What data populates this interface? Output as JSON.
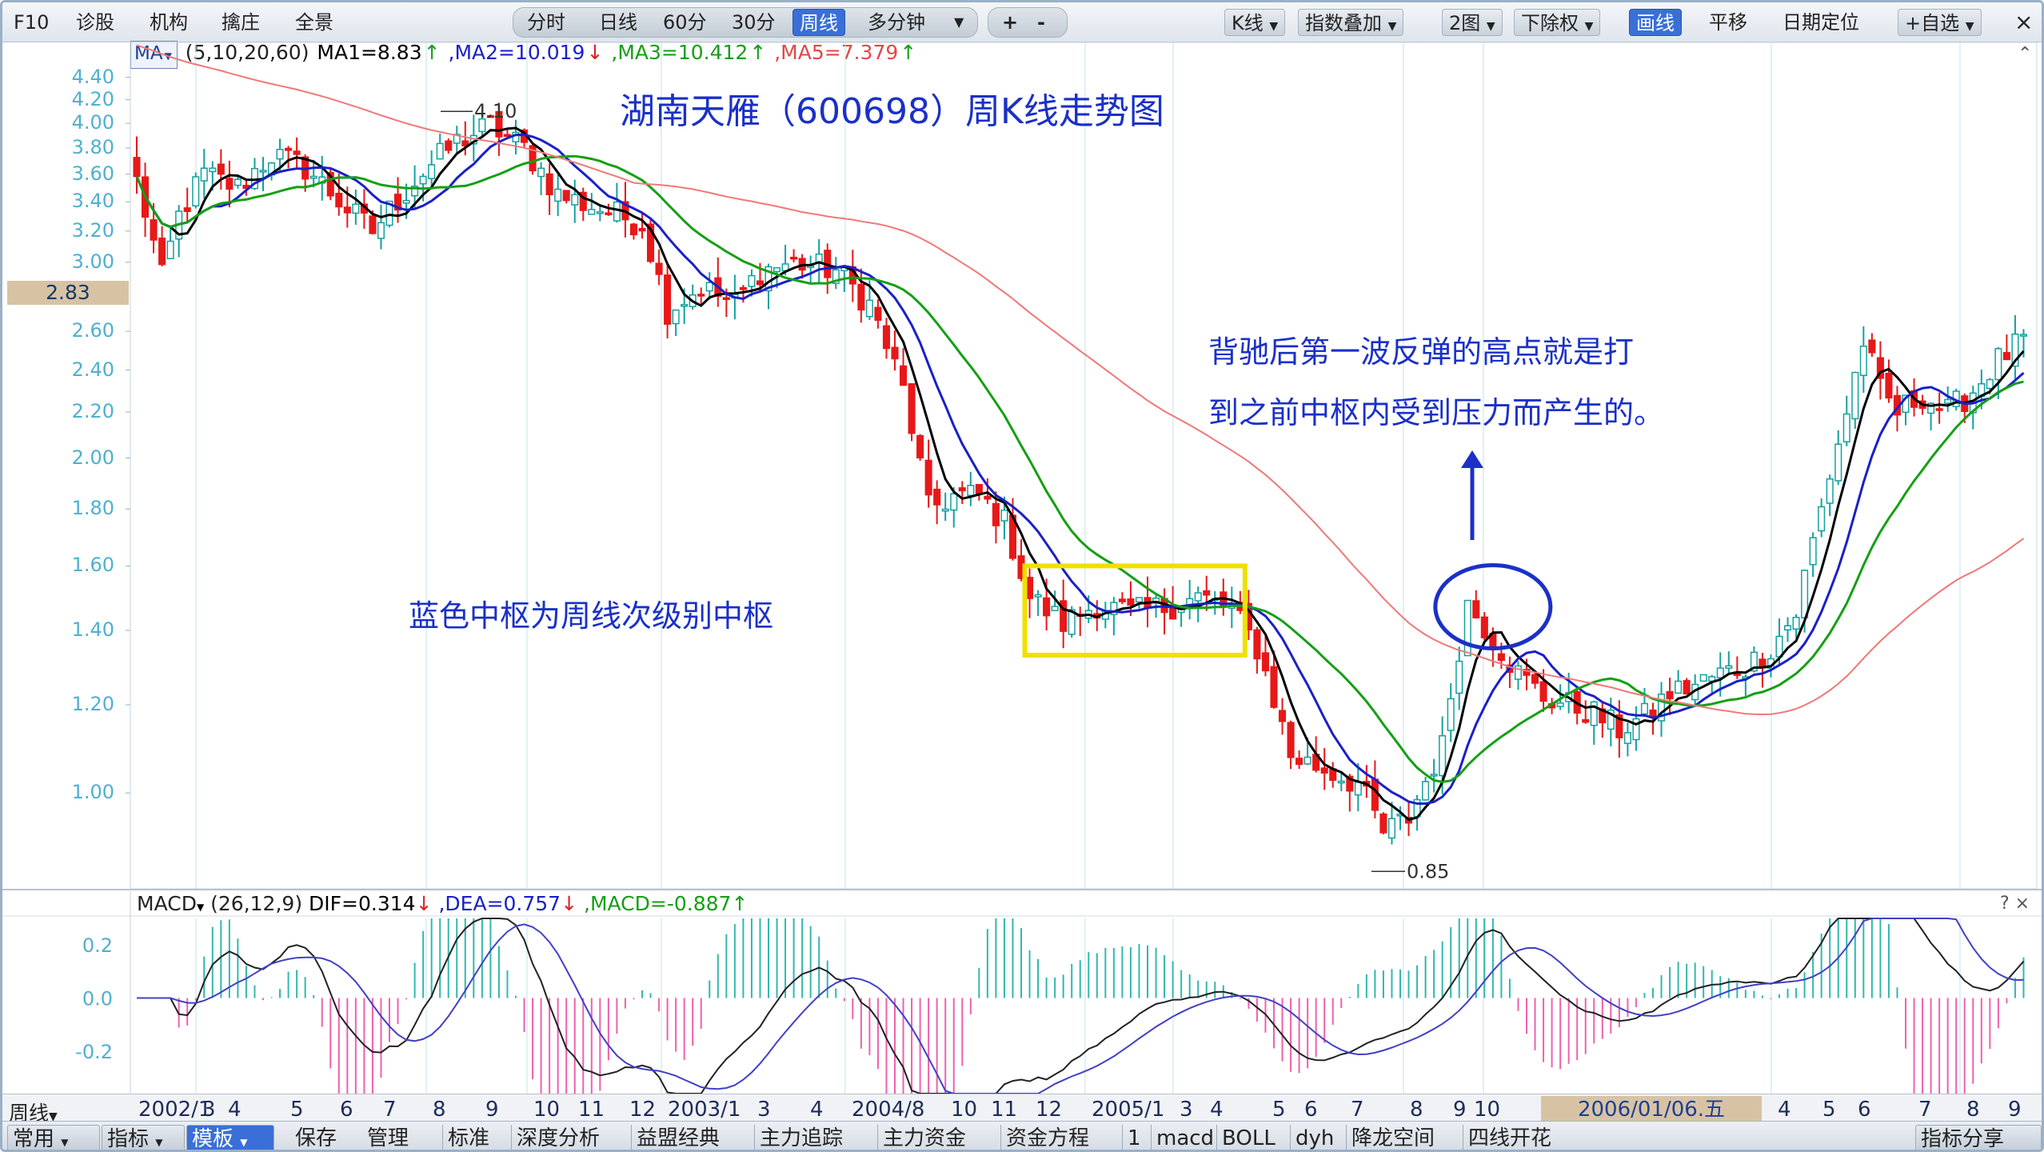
{
  "toolbar": {
    "left_items": [
      "F10",
      "诊股",
      "机构",
      "擒庄",
      "全景"
    ],
    "period_tabs": [
      "分时",
      "日线",
      "60分",
      "30分",
      "周线",
      "多分钟"
    ],
    "active_period": "周线",
    "zoom_in": "+",
    "zoom_out": "-",
    "right_items": [
      "K线",
      "指数叠加",
      "2图",
      "下除权",
      "画线",
      "平移",
      "日期定位",
      "+自选"
    ],
    "active_right": "画线",
    "close": "×"
  },
  "indicator_main": {
    "selector": "MA",
    "params": "(5,10,20,60)",
    "ma1": "MA1=8.83",
    "ma1_dir": "↑",
    "ma2": ",MA2=10.019",
    "ma2_dir": "↓",
    "ma3": ",MA3=10.412",
    "ma3_dir": "↑",
    "ma5": ",MA5=7.379",
    "ma5_dir": "↑",
    "colors": {
      "ma1": "#000000",
      "ma2": "#1a20c8",
      "ma3": "#14a014",
      "ma5": "#f07878"
    }
  },
  "indicator_sub": {
    "name": "MACD",
    "params": "(26,12,9)",
    "dif": "DIF=0.314",
    "dif_dir": "↓",
    "dea": ",DEA=0.757",
    "dea_dir": "↓",
    "macd": ",MACD=-0.887",
    "macd_dir": "↑",
    "close_icons": "? ×"
  },
  "current_price": "2.83",
  "annotations": {
    "title": "湖南天雁（600698）周K线走势图",
    "zhongshu_label": "蓝色中枢为周线次级别中枢",
    "rebound_line1": "背驰后第一波反弹的高点就是打",
    "rebound_line2": "到之前中枢内受到压力而产生的。",
    "high_label": "4.10",
    "low_label": "0.85"
  },
  "x_axis": {
    "period_label": "周线",
    "date_highlight": "2006/01/06.五"
  },
  "bottom_bar": {
    "tabs": [
      "常用",
      "指标",
      "模板",
      "保存",
      "管理",
      "标准",
      "深度分析",
      "益盟经典",
      "主力追踪",
      "主力资金",
      "资金方程",
      "1",
      "macd",
      "BOLL",
      "dyh",
      "降龙空间",
      "四线开花"
    ],
    "active_tab": "模板",
    "right_button": "指标分享"
  },
  "chart_data": {
    "type": "candlestick",
    "title": "湖南天雁（600698）周K线走势图",
    "price_axis": {
      "scale": "log",
      "ylim": [
        0.82,
        4.5
      ],
      "ticks": [
        4.4,
        4.2,
        4.0,
        3.8,
        3.6,
        3.4,
        3.2,
        3.0,
        2.6,
        2.4,
        2.2,
        2.0,
        1.8,
        1.6,
        1.4,
        1.2,
        1.0
      ],
      "tick_labels": [
        "4.40",
        "4.20",
        "4.00",
        "3.80",
        "3.60",
        "3.40",
        "3.20",
        "3.00",
        "2.60",
        "2.40",
        "2.20",
        "2.00",
        "1.80",
        "1.60",
        "1.40",
        "1.20",
        "1.00"
      ]
    },
    "x_ticks": [
      "2002/1",
      "3",
      "4",
      "5",
      "6",
      "7",
      "8",
      "9",
      "10",
      "11",
      "12",
      "2003/1",
      "3",
      "4",
      "2004/8",
      "10",
      "11",
      "12",
      "2005/1",
      "3",
      "4",
      "5",
      "6",
      "7",
      "8",
      "9",
      "10",
      "2006/01/06.五",
      "4",
      "5",
      "6",
      "7",
      "8",
      "9"
    ],
    "price_path": [
      [
        0,
        3.55
      ],
      [
        3,
        2.9
      ],
      [
        5,
        3.3
      ],
      [
        8,
        3.6
      ],
      [
        12,
        3.5
      ],
      [
        16,
        3.75
      ],
      [
        20,
        3.65
      ],
      [
        25,
        3.35
      ],
      [
        28,
        3.2
      ],
      [
        33,
        3.55
      ],
      [
        38,
        3.85
      ],
      [
        42,
        3.98
      ],
      [
        46,
        3.8
      ],
      [
        50,
        3.45
      ],
      [
        55,
        3.35
      ],
      [
        60,
        3.25
      ],
      [
        63,
        2.72
      ],
      [
        67,
        2.85
      ],
      [
        71,
        2.75
      ],
      [
        74,
        2.95
      ],
      [
        78,
        3.0
      ],
      [
        83,
        2.95
      ],
      [
        87,
        2.75
      ],
      [
        91,
        2.3
      ],
      [
        94,
        1.8
      ],
      [
        97,
        1.85
      ],
      [
        100,
        1.85
      ],
      [
        103,
        1.75
      ],
      [
        106,
        1.5
      ],
      [
        110,
        1.42
      ],
      [
        114,
        1.48
      ],
      [
        118,
        1.45
      ],
      [
        122,
        1.47
      ],
      [
        126,
        1.5
      ],
      [
        130,
        1.46
      ],
      [
        133,
        1.35
      ],
      [
        137,
        1.08
      ],
      [
        141,
        1.05
      ],
      [
        145,
        1.02
      ],
      [
        148,
        0.92
      ],
      [
        151,
        0.95
      ],
      [
        155,
        1.1
      ],
      [
        158,
        1.48
      ],
      [
        161,
        1.38
      ],
      [
        164,
        1.28
      ],
      [
        167,
        1.22
      ],
      [
        170,
        1.2
      ],
      [
        173,
        1.18
      ],
      [
        176,
        1.14
      ],
      [
        179,
        1.17
      ],
      [
        182,
        1.23
      ],
      [
        185,
        1.25
      ],
      [
        188,
        1.28
      ],
      [
        191,
        1.3
      ],
      [
        194,
        1.35
      ],
      [
        197,
        1.45
      ],
      [
        200,
        1.8
      ],
      [
        203,
        2.2
      ],
      [
        205,
        2.55
      ],
      [
        207,
        2.3
      ],
      [
        209,
        2.2
      ],
      [
        212,
        2.28
      ],
      [
        215,
        2.2
      ],
      [
        218,
        2.3
      ],
      [
        221,
        2.45
      ],
      [
        224,
        2.55
      ]
    ],
    "n_bars": 225,
    "series": [
      {
        "name": "MA1",
        "period": 5,
        "color": "#000000"
      },
      {
        "name": "MA2",
        "period": 10,
        "color": "#1a20c8"
      },
      {
        "name": "MA3",
        "period": 20,
        "color": "#14a014"
      },
      {
        "name": "MA5",
        "period": 60,
        "color": "#f07878"
      }
    ],
    "annotated_high": 4.1,
    "annotated_low": 0.85,
    "zhongshu_box": {
      "price_low": 1.33,
      "price_high": 1.6,
      "bar_start": 106,
      "bar_end": 131
    },
    "highlight_circle": {
      "bar": 161,
      "price": 1.47
    },
    "macd_axis": {
      "ylim": [
        -0.36,
        0.3
      ],
      "ticks": [
        0.2,
        0.0,
        -0.2
      ],
      "tick_labels": [
        "0.2",
        "0.0",
        "-0.2"
      ]
    }
  }
}
